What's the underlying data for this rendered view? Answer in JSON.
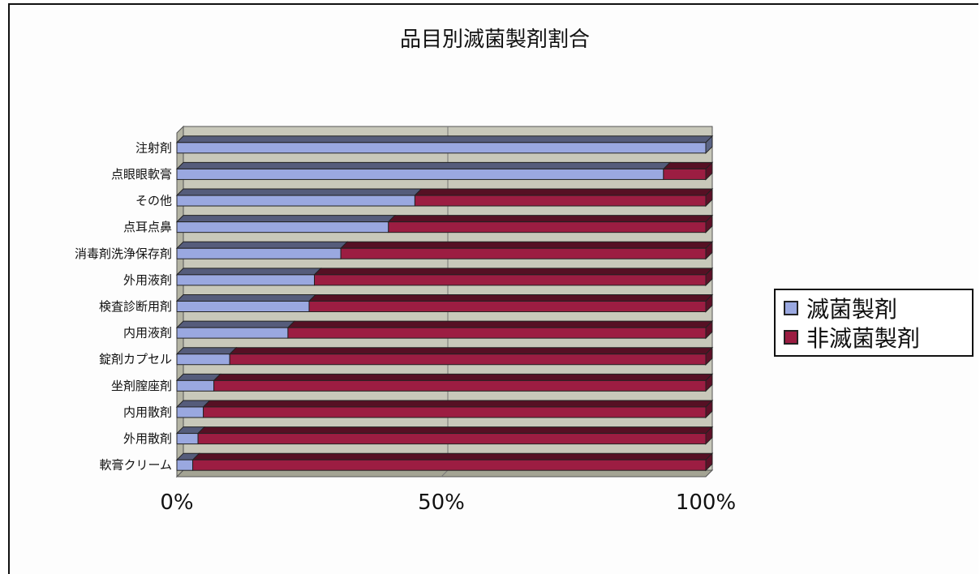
{
  "chart_data": {
    "type": "bar",
    "stacked_percent": true,
    "orientation": "horizontal",
    "title": "品目別滅菌製剤割合",
    "categories": [
      "注射剤",
      "点眼眼軟膏",
      "その他",
      "点耳点鼻",
      "消毒剤洗浄保存剤",
      "外用液剤",
      "検査診断用剤",
      "内用液剤",
      "錠剤カプセル",
      "坐剤膣座剤",
      "内用散剤",
      "外用散剤",
      "軟膏クリーム"
    ],
    "series": [
      {
        "name": "滅菌製剤",
        "values": [
          100,
          92,
          45,
          40,
          31,
          26,
          25,
          21,
          10,
          7,
          5,
          4,
          3
        ]
      },
      {
        "name": "非滅菌製剤",
        "values": [
          0,
          8,
          55,
          60,
          69,
          74,
          75,
          79,
          90,
          93,
          95,
          96,
          97
        ]
      }
    ],
    "xlim": [
      0,
      100
    ],
    "x_ticks": [
      "0%",
      "50%",
      "100%"
    ],
    "grid": "vertical",
    "legend_position": "right",
    "colors": {
      "series": [
        "#9aa8e0",
        "#9c1d42"
      ],
      "plot_background": "#c8c8ba",
      "plot_wall": "#b4b4a4",
      "plot_floor": "#a4a494"
    }
  }
}
